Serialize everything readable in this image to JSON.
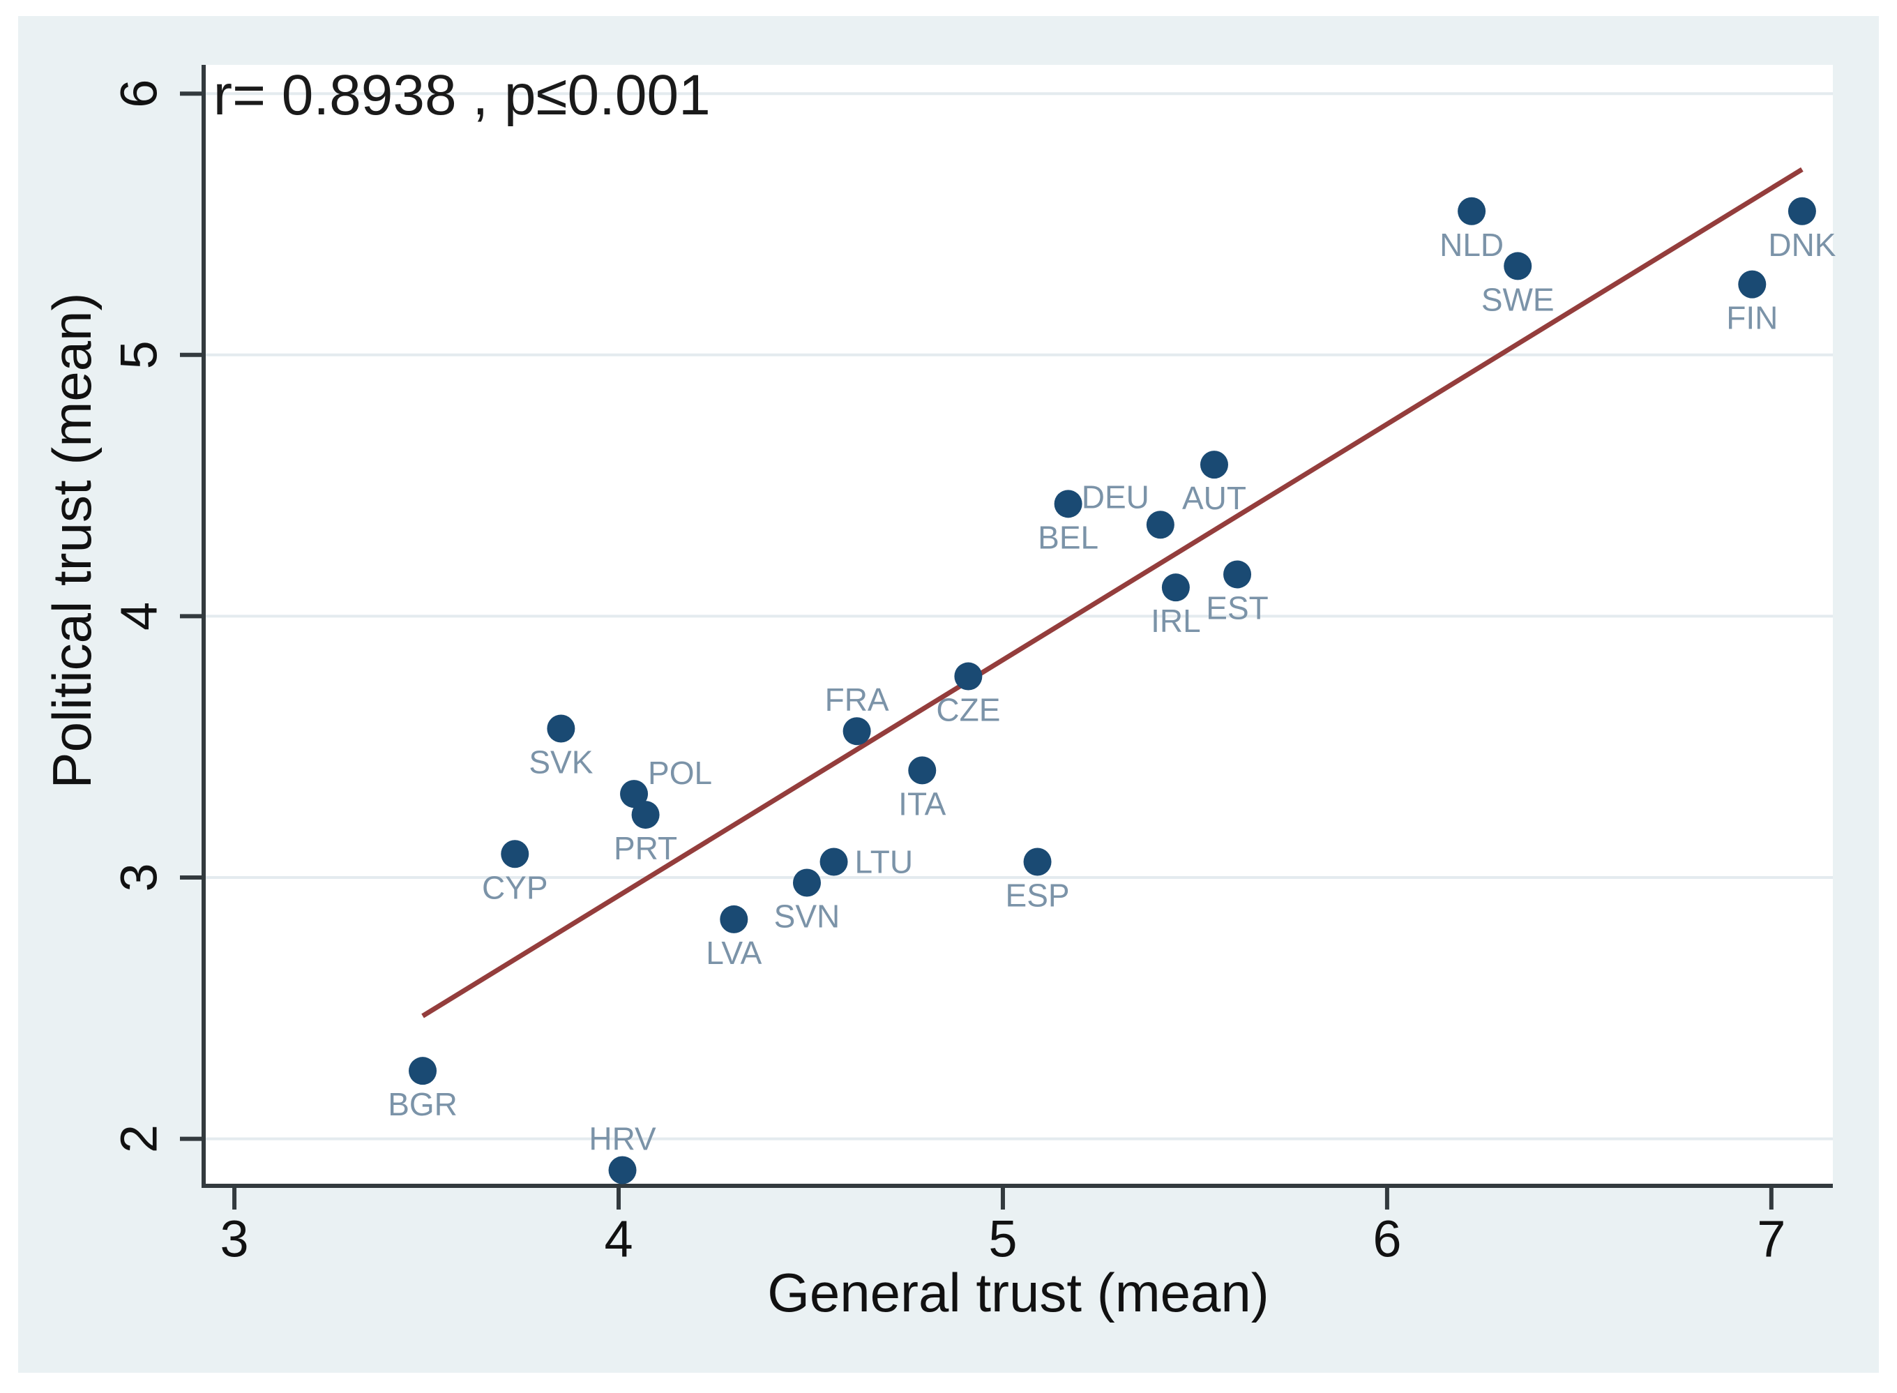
{
  "figure": {
    "annotation_label": "r=  0.8938 , p≤0.001",
    "colors": {
      "background": "#EAF1F3",
      "plot_background": "#FFFFFF",
      "gridline": "#E4EBEF",
      "axis": "#333A3E",
      "tick_text": "#111111",
      "point": "#1A4A73",
      "point_label": "#7B93A8",
      "fit_line": "#943D3C",
      "annotation_text": "#1a1a1a"
    }
  },
  "chart_data": {
    "type": "scatter",
    "title": "",
    "xlabel": "General trust (mean)",
    "ylabel": "Political trust (mean)",
    "xlim": [
      2.92,
      7.16
    ],
    "ylim": [
      1.82,
      6.11
    ],
    "xticks": [
      3,
      4,
      5,
      6,
      7
    ],
    "yticks": [
      2,
      3,
      4,
      5,
      6
    ],
    "grid": "horizontal-only",
    "legend": "none",
    "annotation": {
      "text": "r=  0.8938 , p≤0.001",
      "x": 2.945,
      "y": 5.92
    },
    "points": [
      {
        "country": "BGR",
        "x": 3.49,
        "y": 2.26,
        "label_pos": "below"
      },
      {
        "country": "HRV",
        "x": 4.01,
        "y": 1.88,
        "label_pos": "above"
      },
      {
        "country": "CYP",
        "x": 3.73,
        "y": 3.09,
        "label_pos": "below"
      },
      {
        "country": "SVK",
        "x": 3.85,
        "y": 3.57,
        "label_pos": "below"
      },
      {
        "country": "POL",
        "x": 4.04,
        "y": 3.32,
        "label_pos": "above-right"
      },
      {
        "country": "PRT",
        "x": 4.07,
        "y": 3.24,
        "label_pos": "below"
      },
      {
        "country": "LVA",
        "x": 4.3,
        "y": 2.84,
        "label_pos": "below"
      },
      {
        "country": "SVN",
        "x": 4.49,
        "y": 2.98,
        "label_pos": "below"
      },
      {
        "country": "LTU",
        "x": 4.56,
        "y": 3.06,
        "label_pos": "right"
      },
      {
        "country": "FRA",
        "x": 4.62,
        "y": 3.56,
        "label_pos": "above"
      },
      {
        "country": "ITA",
        "x": 4.79,
        "y": 3.41,
        "label_pos": "below"
      },
      {
        "country": "CZE",
        "x": 4.91,
        "y": 3.77,
        "label_pos": "below"
      },
      {
        "country": "ESP",
        "x": 5.09,
        "y": 3.06,
        "label_pos": "below"
      },
      {
        "country": "BEL",
        "x": 5.17,
        "y": 4.43,
        "label_pos": "below"
      },
      {
        "country": "DEU",
        "x": 5.41,
        "y": 4.35,
        "label_pos": "above-left"
      },
      {
        "country": "IRL",
        "x": 5.45,
        "y": 4.11,
        "label_pos": "below"
      },
      {
        "country": "EST",
        "x": 5.61,
        "y": 4.16,
        "label_pos": "below"
      },
      {
        "country": "AUT",
        "x": 5.55,
        "y": 4.58,
        "label_pos": "below"
      },
      {
        "country": "NLD",
        "x": 6.22,
        "y": 5.55,
        "label_pos": "below"
      },
      {
        "country": "SWE",
        "x": 6.34,
        "y": 5.34,
        "label_pos": "below"
      },
      {
        "country": "FIN",
        "x": 6.95,
        "y": 5.27,
        "label_pos": "below"
      },
      {
        "country": "DNK",
        "x": 7.08,
        "y": 5.55,
        "label_pos": "below"
      }
    ],
    "fit_line": {
      "x1": 3.49,
      "y1": 2.47,
      "x2": 7.08,
      "y2": 5.71
    }
  }
}
